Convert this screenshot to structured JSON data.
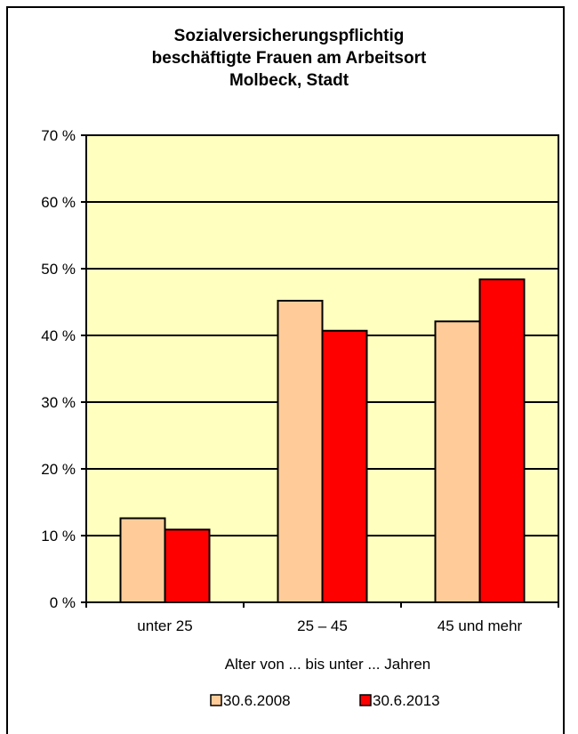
{
  "chart_data": {
    "type": "bar",
    "title_lines": [
      "Sozialversicherungspflichtig",
      "beschäftigte Frauen am Arbeitsort",
      "Molbeck, Stadt"
    ],
    "xlabel": "Alter von ... bis unter ... Jahren",
    "ylabel": "",
    "categories": [
      "unter 25",
      "25 – 45",
      "45 und mehr"
    ],
    "y_ticks": [
      "0 %",
      "10 %",
      "20 %",
      "30 %",
      "40 %",
      "50 %",
      "60 %",
      "70 %"
    ],
    "ylim": [
      0,
      70
    ],
    "grid": true,
    "legend_position": "bottom",
    "plot_background": "#ffffc0",
    "series": [
      {
        "name": "30.6.2008",
        "color": "#ffcc99",
        "values": [
          12.6,
          45.2,
          42.1
        ]
      },
      {
        "name": "30.6.2013",
        "color": "#ff0000",
        "values": [
          10.9,
          40.7,
          48.4
        ]
      }
    ]
  }
}
